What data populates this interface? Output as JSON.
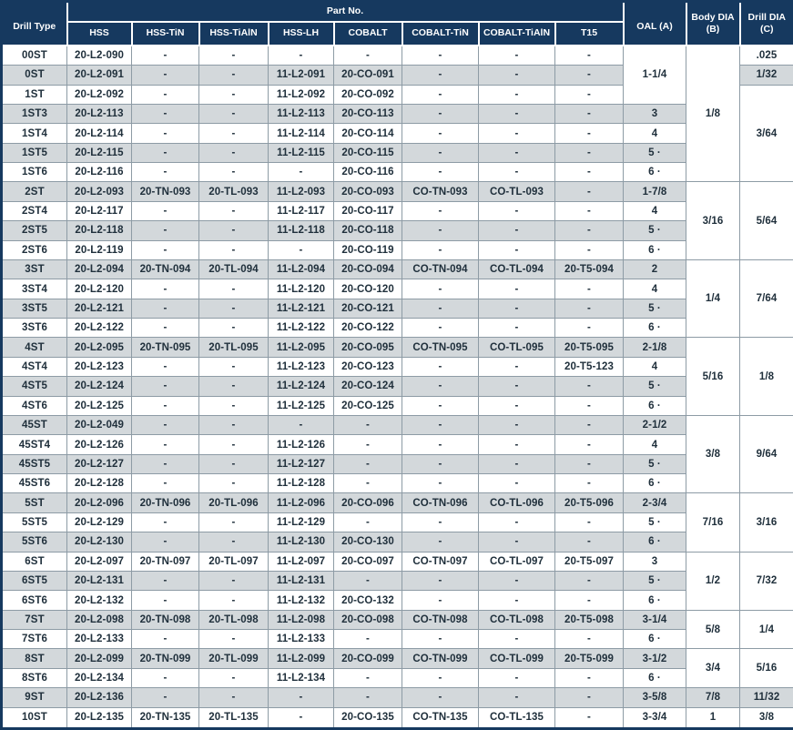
{
  "colors": {
    "header_bg": "#16395f",
    "stripe_bg": "#d3d8db",
    "cell_border": "#8d9ba5",
    "text": "#20303c"
  },
  "table": {
    "header": {
      "drill_type": "Drill Type",
      "part_no_group": "Part No.",
      "part_no_columns": [
        "HSS",
        "HSS-TiN",
        "HSS-TiAlN",
        "HSS-LH",
        "COBALT",
        "COBALT-TiN",
        "COBALT-TiAlN",
        "T15"
      ],
      "oal": "OAL (A)",
      "body_dia": "Body DIA (B)",
      "drill_dia": "Drill DIA (C)"
    },
    "rows": [
      {
        "type": "00ST",
        "parts": [
          "20-L2-090",
          "-",
          "-",
          "-",
          "-",
          "-",
          "-",
          "-"
        ],
        "oal": {
          "v": "1-1/4",
          "span": 3
        },
        "body": {
          "v": "1/8",
          "span": 7
        },
        "drill": {
          "v": ".025",
          "span": 1
        }
      },
      {
        "type": "0ST",
        "parts": [
          "20-L2-091",
          "-",
          "-",
          "11-L2-091",
          "20-CO-091",
          "-",
          "-",
          "-"
        ],
        "drill": {
          "v": "1/32",
          "span": 1
        }
      },
      {
        "type": "1ST",
        "parts": [
          "20-L2-092",
          "-",
          "-",
          "11-L2-092",
          "20-CO-092",
          "-",
          "-",
          "-"
        ],
        "drill": {
          "v": "3/64",
          "span": 5
        }
      },
      {
        "type": "1ST3",
        "parts": [
          "20-L2-113",
          "-",
          "-",
          "11-L2-113",
          "20-CO-113",
          "-",
          "-",
          "-"
        ],
        "oal": {
          "v": "3",
          "span": 1
        }
      },
      {
        "type": "1ST4",
        "parts": [
          "20-L2-114",
          "-",
          "-",
          "11-L2-114",
          "20-CO-114",
          "-",
          "-",
          "-"
        ],
        "oal": {
          "v": "4",
          "span": 1
        }
      },
      {
        "type": "1ST5",
        "parts": [
          "20-L2-115",
          "-",
          "-",
          "11-L2-115",
          "20-CO-115",
          "-",
          "-",
          "-"
        ],
        "oal": {
          "v": "5 ·",
          "span": 1
        }
      },
      {
        "type": "1ST6",
        "parts": [
          "20-L2-116",
          "-",
          "-",
          "-",
          "20-CO-116",
          "-",
          "-",
          "-"
        ],
        "oal": {
          "v": "6 ·",
          "span": 1
        }
      },
      {
        "type": "2ST",
        "parts": [
          "20-L2-093",
          "20-TN-093",
          "20-TL-093",
          "11-L2-093",
          "20-CO-093",
          "CO-TN-093",
          "CO-TL-093",
          "-"
        ],
        "oal": {
          "v": "1-7/8",
          "span": 1
        },
        "body": {
          "v": "3/16",
          "span": 4
        },
        "drill": {
          "v": "5/64",
          "span": 4
        }
      },
      {
        "type": "2ST4",
        "parts": [
          "20-L2-117",
          "-",
          "-",
          "11-L2-117",
          "20-CO-117",
          "-",
          "-",
          "-"
        ],
        "oal": {
          "v": "4",
          "span": 1
        }
      },
      {
        "type": "2ST5",
        "parts": [
          "20-L2-118",
          "-",
          "-",
          "11-L2-118",
          "20-CO-118",
          "-",
          "-",
          "-"
        ],
        "oal": {
          "v": "5 ·",
          "span": 1
        }
      },
      {
        "type": "2ST6",
        "parts": [
          "20-L2-119",
          "-",
          "-",
          "-",
          "20-CO-119",
          "-",
          "-",
          "-"
        ],
        "oal": {
          "v": "6 ·",
          "span": 1
        }
      },
      {
        "type": "3ST",
        "parts": [
          "20-L2-094",
          "20-TN-094",
          "20-TL-094",
          "11-L2-094",
          "20-CO-094",
          "CO-TN-094",
          "CO-TL-094",
          "20-T5-094"
        ],
        "oal": {
          "v": "2",
          "span": 1
        },
        "body": {
          "v": "1/4",
          "span": 4
        },
        "drill": {
          "v": "7/64",
          "span": 4
        }
      },
      {
        "type": "3ST4",
        "parts": [
          "20-L2-120",
          "-",
          "-",
          "11-L2-120",
          "20-CO-120",
          "-",
          "-",
          "-"
        ],
        "oal": {
          "v": "4",
          "span": 1
        }
      },
      {
        "type": "3ST5",
        "parts": [
          "20-L2-121",
          "-",
          "-",
          "11-L2-121",
          "20-CO-121",
          "-",
          "-",
          "-"
        ],
        "oal": {
          "v": "5 ·",
          "span": 1
        }
      },
      {
        "type": "3ST6",
        "parts": [
          "20-L2-122",
          "-",
          "-",
          "11-L2-122",
          "20-CO-122",
          "-",
          "-",
          "-"
        ],
        "oal": {
          "v": "6 ·",
          "span": 1
        }
      },
      {
        "type": "4ST",
        "parts": [
          "20-L2-095",
          "20-TN-095",
          "20-TL-095",
          "11-L2-095",
          "20-CO-095",
          "CO-TN-095",
          "CO-TL-095",
          "20-T5-095"
        ],
        "oal": {
          "v": "2-1/8",
          "span": 1
        },
        "body": {
          "v": "5/16",
          "span": 4
        },
        "drill": {
          "v": "1/8",
          "span": 4
        }
      },
      {
        "type": "4ST4",
        "parts": [
          "20-L2-123",
          "-",
          "-",
          "11-L2-123",
          "20-CO-123",
          "-",
          "-",
          "20-T5-123"
        ],
        "oal": {
          "v": "4",
          "span": 1
        }
      },
      {
        "type": "4ST5",
        "parts": [
          "20-L2-124",
          "-",
          "-",
          "11-L2-124",
          "20-CO-124",
          "-",
          "-",
          "-"
        ],
        "oal": {
          "v": "5 ·",
          "span": 1
        }
      },
      {
        "type": "4ST6",
        "parts": [
          "20-L2-125",
          "-",
          "-",
          "11-L2-125",
          "20-CO-125",
          "-",
          "-",
          "-"
        ],
        "oal": {
          "v": "6 ·",
          "span": 1
        }
      },
      {
        "type": "45ST",
        "parts": [
          "20-L2-049",
          "-",
          "-",
          "-",
          "-",
          "-",
          "-",
          "-"
        ],
        "oal": {
          "v": "2-1/2",
          "span": 1
        },
        "body": {
          "v": "3/8",
          "span": 4
        },
        "drill": {
          "v": "9/64",
          "span": 4
        }
      },
      {
        "type": "45ST4",
        "parts": [
          "20-L2-126",
          "-",
          "-",
          "11-L2-126",
          "-",
          "-",
          "-",
          "-"
        ],
        "oal": {
          "v": "4",
          "span": 1
        }
      },
      {
        "type": "45ST5",
        "parts": [
          "20-L2-127",
          "-",
          "-",
          "11-L2-127",
          "-",
          "-",
          "-",
          "-"
        ],
        "oal": {
          "v": "5 ·",
          "span": 1
        }
      },
      {
        "type": "45ST6",
        "parts": [
          "20-L2-128",
          "-",
          "-",
          "11-L2-128",
          "-",
          "-",
          "-",
          "-"
        ],
        "oal": {
          "v": "6 ·",
          "span": 1
        }
      },
      {
        "type": "5ST",
        "parts": [
          "20-L2-096",
          "20-TN-096",
          "20-TL-096",
          "11-L2-096",
          "20-CO-096",
          "CO-TN-096",
          "CO-TL-096",
          "20-T5-096"
        ],
        "oal": {
          "v": "2-3/4",
          "span": 1
        },
        "body": {
          "v": "7/16",
          "span": 3
        },
        "drill": {
          "v": "3/16",
          "span": 3
        }
      },
      {
        "type": "5ST5",
        "parts": [
          "20-L2-129",
          "-",
          "-",
          "11-L2-129",
          "-",
          "-",
          "-",
          "-"
        ],
        "oal": {
          "v": "5 ·",
          "span": 1
        }
      },
      {
        "type": "5ST6",
        "parts": [
          "20-L2-130",
          "-",
          "-",
          "11-L2-130",
          "20-CO-130",
          "-",
          "-",
          "-"
        ],
        "oal": {
          "v": "6 ·",
          "span": 1
        }
      },
      {
        "type": "6ST",
        "parts": [
          "20-L2-097",
          "20-TN-097",
          "20-TL-097",
          "11-L2-097",
          "20-CO-097",
          "CO-TN-097",
          "CO-TL-097",
          "20-T5-097"
        ],
        "oal": {
          "v": "3",
          "span": 1
        },
        "body": {
          "v": "1/2",
          "span": 3
        },
        "drill": {
          "v": "7/32",
          "span": 3
        }
      },
      {
        "type": "6ST5",
        "parts": [
          "20-L2-131",
          "-",
          "-",
          "11-L2-131",
          "-",
          "-",
          "-",
          "-"
        ],
        "oal": {
          "v": "5 ·",
          "span": 1
        }
      },
      {
        "type": "6ST6",
        "parts": [
          "20-L2-132",
          "-",
          "-",
          "11-L2-132",
          "20-CO-132",
          "-",
          "-",
          "-"
        ],
        "oal": {
          "v": "6 ·",
          "span": 1
        }
      },
      {
        "type": "7ST",
        "parts": [
          "20-L2-098",
          "20-TN-098",
          "20-TL-098",
          "11-L2-098",
          "20-CO-098",
          "CO-TN-098",
          "CO-TL-098",
          "20-T5-098"
        ],
        "oal": {
          "v": "3-1/4",
          "span": 1
        },
        "body": {
          "v": "5/8",
          "span": 2
        },
        "drill": {
          "v": "1/4",
          "span": 2
        }
      },
      {
        "type": "7ST6",
        "parts": [
          "20-L2-133",
          "-",
          "-",
          "11-L2-133",
          "-",
          "-",
          "-",
          "-"
        ],
        "oal": {
          "v": "6 ·",
          "span": 1
        }
      },
      {
        "type": "8ST",
        "parts": [
          "20-L2-099",
          "20-TN-099",
          "20-TL-099",
          "11-L2-099",
          "20-CO-099",
          "CO-TN-099",
          "CO-TL-099",
          "20-T5-099"
        ],
        "oal": {
          "v": "3-1/2",
          "span": 1
        },
        "body": {
          "v": "3/4",
          "span": 2
        },
        "drill": {
          "v": "5/16",
          "span": 2
        }
      },
      {
        "type": "8ST6",
        "parts": [
          "20-L2-134",
          "-",
          "-",
          "11-L2-134",
          "-",
          "-",
          "-",
          "-"
        ],
        "oal": {
          "v": "6 ·",
          "span": 1
        }
      },
      {
        "type": "9ST",
        "parts": [
          "20-L2-136",
          "-",
          "-",
          "-",
          "-",
          "-",
          "-",
          "-"
        ],
        "oal": {
          "v": "3-5/8",
          "span": 1
        },
        "body": {
          "v": "7/8",
          "span": 1
        },
        "drill": {
          "v": "11/32",
          "span": 1
        }
      },
      {
        "type": "10ST",
        "parts": [
          "20-L2-135",
          "20-TN-135",
          "20-TL-135",
          "-",
          "20-CO-135",
          "CO-TN-135",
          "CO-TL-135",
          "-"
        ],
        "oal": {
          "v": "3-3/4",
          "span": 1
        },
        "body": {
          "v": "1",
          "span": 1
        },
        "drill": {
          "v": "3/8",
          "span": 1
        }
      }
    ]
  }
}
